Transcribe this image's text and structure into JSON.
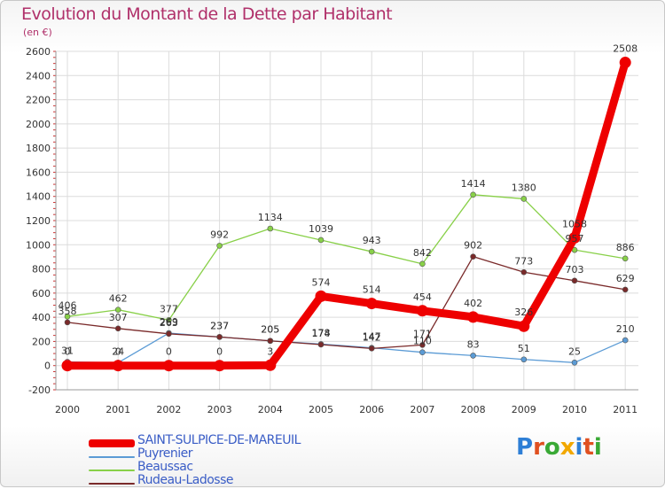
{
  "title": "Evolution du Montant de la Dette par Habitant",
  "unit_label": "(en €)",
  "logo": {
    "text": "Proxiti",
    "colors": [
      "#2e7fd6",
      "#e05020",
      "#39a935",
      "#f2a800",
      "#2e7fd6",
      "#e05020",
      "#39a935"
    ]
  },
  "chart_data": {
    "type": "line",
    "categories": [
      "2000",
      "2001",
      "2002",
      "2003",
      "2004",
      "2005",
      "2006",
      "2007",
      "2008",
      "2009",
      "2010",
      "2011"
    ],
    "ylim": [
      -200,
      2600
    ],
    "yticks": [
      -200,
      0,
      200,
      400,
      600,
      800,
      1000,
      1200,
      1400,
      1600,
      1800,
      2000,
      2200,
      2400,
      2600
    ],
    "grid": true,
    "legend_position": "bottom-left",
    "series": [
      {
        "name": "SAINT-SULPICE-DE-MAREUIL",
        "color": "#ee0000",
        "width": 9,
        "values": [
          0,
          0,
          0,
          0,
          3,
          574,
          514,
          454,
          402,
          326,
          1058,
          2508
        ]
      },
      {
        "name": "Puyrenier",
        "color": "#5b9bd5",
        "width": 1.3,
        "values": [
          31,
          24,
          269,
          237,
          205,
          178,
          147,
          110,
          83,
          51,
          25,
          210
        ]
      },
      {
        "name": "Beaussac",
        "color": "#88d048",
        "width": 1.3,
        "values": [
          406,
          462,
          377,
          992,
          1134,
          1039,
          943,
          842,
          1414,
          1380,
          957,
          886
        ]
      },
      {
        "name": "Rudeau-Ladosse",
        "color": "#7a2a2a",
        "width": 1.3,
        "values": [
          358,
          307,
          263,
          237,
          205,
          174,
          142,
          171,
          902,
          773,
          703,
          629
        ]
      }
    ]
  }
}
